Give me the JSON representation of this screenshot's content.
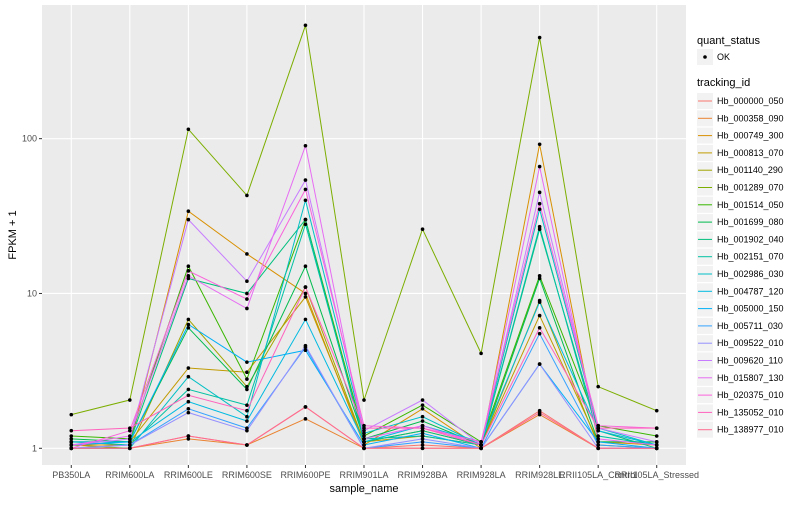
{
  "chart_data": {
    "type": "line",
    "x_label": "sample_name",
    "y_label": "FPKM + 1",
    "categories": [
      "PB350LA",
      "RRIM600LA",
      "RRIM600LE",
      "RRIM600SE",
      "RRIM600PE",
      "RRIM901LA",
      "RRIM928BA",
      "RRIM928LA",
      "RRIM928LE",
      "RRII105LA_Control",
      "RRII105LA_Stressed"
    ],
    "log_y": true,
    "grid": true,
    "ylim": [
      0.78,
      730
    ],
    "yticks": [
      1,
      10,
      100
    ],
    "shape_legend": {
      "title": "quant_status",
      "labels": [
        "OK"
      ]
    },
    "color_legend_title": "tracking_id",
    "legend_position": "right",
    "series": [
      {
        "name": "Hb_000000_050",
        "color": "#F8766D",
        "values": [
          1.0,
          1.0,
          1.2,
          1.05,
          1.85,
          1.0,
          1.05,
          1.0,
          1.75,
          1.0,
          1.0
        ]
      },
      {
        "name": "Hb_000358_090",
        "color": "#EA8331",
        "values": [
          1.0,
          1.0,
          1.15,
          1.05,
          1.55,
          1.0,
          1.0,
          1.0,
          1.65,
          1.0,
          1.0
        ]
      },
      {
        "name": "Hb_000749_300",
        "color": "#D89000",
        "values": [
          1.05,
          1.05,
          34,
          18,
          10,
          1.05,
          1.8,
          1.0,
          92,
          1.1,
          1.05
        ]
      },
      {
        "name": "Hb_000813_070",
        "color": "#C09B00",
        "values": [
          1.1,
          1.1,
          3.3,
          3.1,
          9.5,
          1.1,
          1.2,
          1.05,
          7.2,
          1.1,
          1.1
        ]
      },
      {
        "name": "Hb_001140_290",
        "color": "#A3A500",
        "values": [
          1.05,
          1.0,
          6.8,
          2.5,
          11,
          1.1,
          1.3,
          1.05,
          9,
          1.05,
          1.0
        ]
      },
      {
        "name": "Hb_001289_070",
        "color": "#7CAE00",
        "values": [
          1.65,
          2.05,
          115,
          43,
          540,
          2.05,
          26,
          4.1,
          450,
          2.5,
          1.75
        ]
      },
      {
        "name": "Hb_001514_050",
        "color": "#39B600",
        "values": [
          1.2,
          1.15,
          15,
          2.8,
          30,
          1.2,
          1.9,
          1.1,
          13,
          1.4,
          1.2
        ]
      },
      {
        "name": "Hb_001699_080",
        "color": "#00BB4E",
        "values": [
          1.15,
          1.1,
          6,
          2.4,
          15,
          1.15,
          1.5,
          1.05,
          12.5,
          1.1,
          1.1
        ]
      },
      {
        "name": "Hb_001902_040",
        "color": "#00BF7D",
        "values": [
          1.1,
          1.1,
          12.5,
          10,
          30,
          1.1,
          1.3,
          1.05,
          26,
          1.3,
          1.0
        ]
      },
      {
        "name": "Hb_002151_070",
        "color": "#00C1A3",
        "values": [
          1.1,
          1.05,
          2.4,
          1.9,
          28,
          1.15,
          1.2,
          1.05,
          27,
          1.2,
          1.05
        ]
      },
      {
        "name": "Hb_002986_030",
        "color": "#00BFC4",
        "values": [
          1.0,
          1.0,
          2.9,
          1.6,
          40,
          1.25,
          1.6,
          1.05,
          35,
          1.35,
          1.05
        ]
      },
      {
        "name": "Hb_004787_120",
        "color": "#00BAE0",
        "values": [
          1.1,
          1.1,
          2.0,
          1.5,
          6.8,
          1.1,
          1.4,
          1.1,
          8.8,
          1.3,
          1.05
        ]
      },
      {
        "name": "Hb_005000_150",
        "color": "#00B0F6",
        "values": [
          1.05,
          1.1,
          6.3,
          3.6,
          4.3,
          1.05,
          1.25,
          1.0,
          3.5,
          1.1,
          1.0
        ]
      },
      {
        "name": "Hb_005711_030",
        "color": "#35A2FF",
        "values": [
          1.0,
          1.05,
          1.8,
          1.35,
          4.5,
          1.0,
          1.1,
          1.0,
          5.5,
          1.05,
          1.0
        ]
      },
      {
        "name": "Hb_009522_010",
        "color": "#9590FF",
        "values": [
          1.0,
          1.05,
          1.7,
          1.3,
          4.6,
          1.0,
          1.15,
          1.0,
          3.5,
          1.0,
          1.0
        ]
      },
      {
        "name": "Hb_009620_110",
        "color": "#C77CFF",
        "values": [
          1.05,
          1.15,
          30,
          12,
          54,
          1.3,
          2.05,
          1.05,
          45,
          1.35,
          1.1
        ]
      },
      {
        "name": "Hb_015807_130",
        "color": "#E76BF3",
        "values": [
          1.05,
          1.2,
          13,
          8,
          90,
          1.15,
          1.4,
          1.05,
          66,
          1.15,
          1.05
        ]
      },
      {
        "name": "Hb_020375_010",
        "color": "#FA62DB",
        "values": [
          1.0,
          1.3,
          14,
          9.2,
          47,
          1.4,
          1.35,
          1.1,
          38,
          1.4,
          1.35
        ]
      },
      {
        "name": "Hb_135052_010",
        "color": "#FF62BC",
        "values": [
          1.3,
          1.35,
          2.2,
          1.75,
          11,
          1.35,
          1.35,
          1.05,
          6,
          1.35,
          1.35
        ]
      },
      {
        "name": "Hb_138977_010",
        "color": "#FF6C91",
        "values": [
          1.0,
          1.0,
          1.2,
          1.05,
          1.85,
          1.0,
          1.0,
          1.0,
          1.7,
          1.0,
          1.0
        ]
      }
    ]
  }
}
